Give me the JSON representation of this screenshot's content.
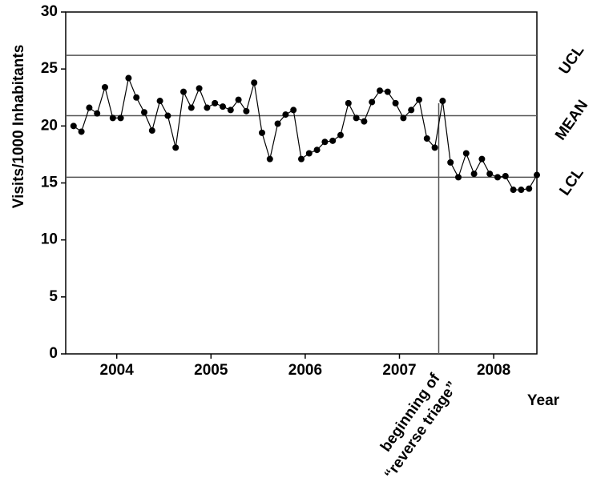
{
  "chart_data": {
    "type": "line",
    "y_label": "Visits/1000 Inhabitants",
    "x_label": "Year",
    "x": [
      1,
      2,
      3,
      4,
      5,
      6,
      7,
      8,
      9,
      10,
      11,
      12,
      13,
      14,
      15,
      16,
      17,
      18,
      19,
      20,
      21,
      22,
      23,
      24,
      25,
      26,
      27,
      28,
      29,
      30,
      31,
      32,
      33,
      34,
      35,
      36,
      37,
      38,
      39,
      40,
      41,
      42,
      43,
      44,
      45,
      46,
      47,
      48,
      49,
      50,
      51,
      52,
      53,
      54,
      55,
      56,
      57,
      58,
      59,
      60
    ],
    "series": [
      {
        "color": "#000000",
        "values": [
          20.0,
          19.5,
          21.6,
          21.1,
          23.4,
          20.7,
          20.7,
          24.2,
          22.5,
          21.2,
          19.6,
          22.2,
          20.9,
          18.1,
          23.0,
          21.6,
          23.3,
          21.6,
          22.0,
          21.7,
          21.4,
          22.3,
          21.3,
          23.8,
          19.4,
          17.1,
          20.2,
          21.0,
          21.4,
          17.1,
          17.6,
          17.9,
          18.6,
          18.7,
          19.2,
          22.0,
          20.7,
          20.4,
          22.1,
          23.1,
          23.0,
          22.0,
          20.7,
          21.4,
          22.3,
          18.9,
          18.1,
          22.2,
          16.8,
          15.5,
          17.6,
          15.8,
          17.1,
          15.8,
          15.5,
          15.6,
          14.4,
          14.4,
          14.5,
          15.7
        ]
      }
    ],
    "xlim": [
      0,
      60
    ],
    "xticks": [
      {
        "value": 6.5,
        "label": "2004"
      },
      {
        "value": 18.5,
        "label": "2005"
      },
      {
        "value": 30.5,
        "label": "2006"
      },
      {
        "value": 42.5,
        "label": "2007"
      },
      {
        "value": 54.5,
        "label": "2008"
      }
    ],
    "ylim": [
      0,
      30
    ],
    "yticks": [
      0,
      5,
      10,
      15,
      20,
      25,
      30
    ],
    "reference_lines": [
      {
        "label": "UCL",
        "value": 26.2
      },
      {
        "label": "MEAN",
        "value": 20.9
      },
      {
        "label": "LCL",
        "value": 15.5
      }
    ],
    "annotation": {
      "x": 47.5,
      "lines": [
        "beginning of",
        "“reverse triage”"
      ]
    }
  }
}
